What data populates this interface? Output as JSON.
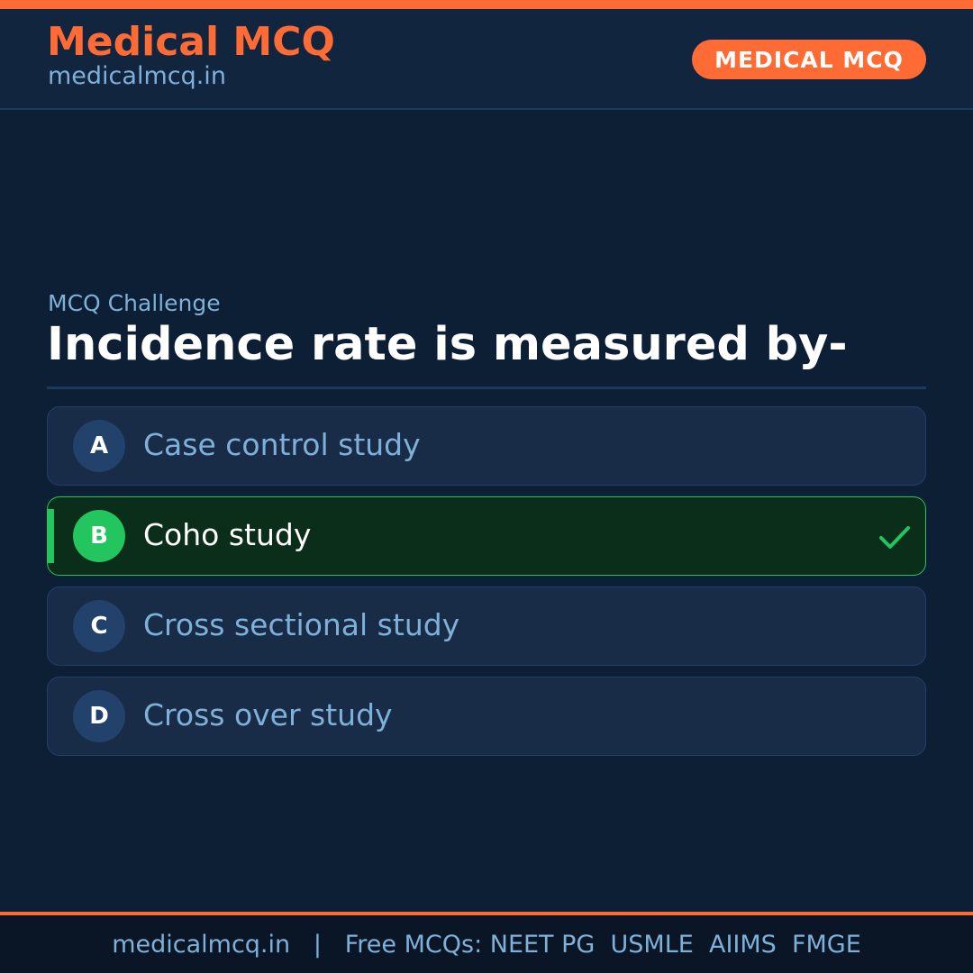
{
  "header": {
    "brand_title": "Medical MCQ",
    "brand_url": "medicalmcq.in",
    "badge": "MEDICAL MCQ"
  },
  "main": {
    "eyebrow": "MCQ Challenge",
    "question": "Incidence rate is measured by-",
    "options": [
      {
        "letter": "A",
        "text": "Case control study",
        "correct": false
      },
      {
        "letter": "B",
        "text": "Coho study",
        "correct": true
      },
      {
        "letter": "C",
        "text": "Cross sectional study",
        "correct": false
      },
      {
        "letter": "D",
        "text": "Cross over study",
        "correct": false
      }
    ],
    "correct_icon": "checkmark-icon"
  },
  "footer": {
    "text": "medicalmcq.in   |   Free MCQs: NEET PG  USMLE  AIIMS  FMGE"
  },
  "colors": {
    "accent": "#ff6b35",
    "background": "#0d1f35",
    "correct": "#22c55e",
    "muted_text": "#7fb0d8"
  }
}
